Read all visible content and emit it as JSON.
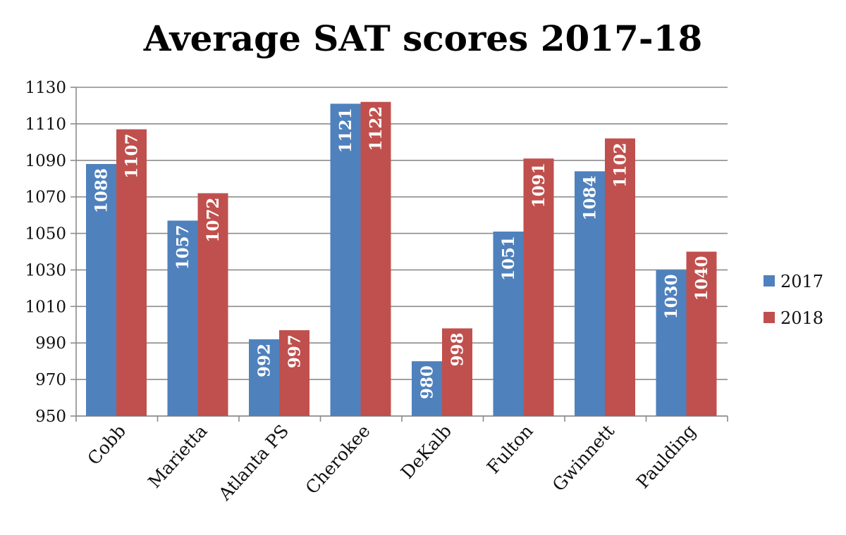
{
  "chart_data": {
    "type": "bar",
    "title": "Average SAT scores 2017-18",
    "xlabel": "",
    "ylabel": "",
    "ylim": [
      950,
      1130
    ],
    "yticks": [
      950,
      970,
      990,
      1010,
      1030,
      1050,
      1070,
      1090,
      1110,
      1130
    ],
    "grid": true,
    "legend_position": "right",
    "categories": [
      "Cobb",
      "Marietta",
      "Atlanta PS",
      "Cherokee",
      "DeKalb",
      "Fulton",
      "Gwinnett",
      "Paulding"
    ],
    "series": [
      {
        "name": "2017",
        "color": "#4F81BD",
        "values": [
          1088,
          1057,
          992,
          1121,
          980,
          1051,
          1084,
          1030
        ]
      },
      {
        "name": "2018",
        "color": "#C0504D",
        "values": [
          1107,
          1072,
          997,
          1122,
          998,
          1091,
          1102,
          1040
        ]
      }
    ]
  }
}
